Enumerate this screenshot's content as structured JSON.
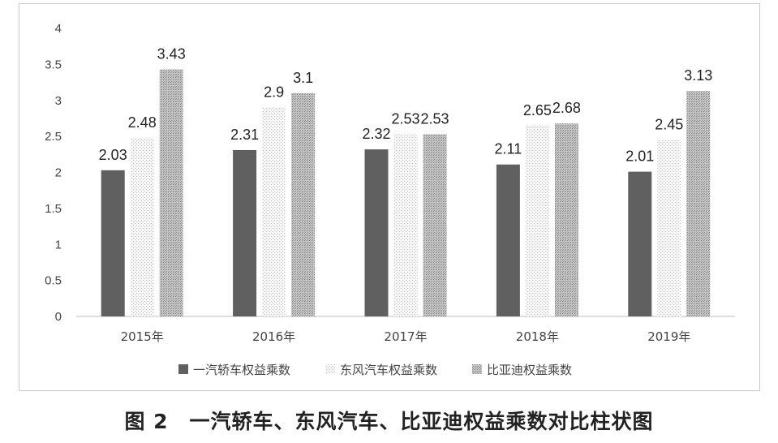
{
  "caption": "图 2　一汽轿车、东风汽车、比亚迪权益乘数对比柱状图",
  "chart_data": {
    "type": "bar",
    "categories": [
      "2015年",
      "2016年",
      "2017年",
      "2018年",
      "2019年"
    ],
    "series": [
      {
        "name": "一汽轿车权益乘数",
        "values": [
          2.03,
          2.31,
          2.32,
          2.11,
          2.01
        ],
        "labels": [
          "2.03",
          "2.31",
          "2.32",
          "2.11",
          "2.01"
        ],
        "color": "#606060",
        "pattern": "solid"
      },
      {
        "name": "东风汽车权益乘数",
        "values": [
          2.48,
          2.9,
          2.53,
          2.65,
          2.45
        ],
        "labels": [
          "2.48",
          "2.9",
          "2.53",
          "2.65",
          "2.45"
        ],
        "color": "#d8d8d8",
        "pattern": "light-dots"
      },
      {
        "name": "比亚迪权益乘数",
        "values": [
          3.43,
          3.1,
          2.53,
          2.68,
          3.13
        ],
        "labels": [
          "3.43",
          "3.1",
          "2.53",
          "2.68",
          "3.13"
        ],
        "color": "#9a9a9a",
        "pattern": "dense-dots"
      }
    ],
    "yticks": [
      "0",
      "0.5",
      "1",
      "1.5",
      "2",
      "2.5",
      "3",
      "3.5",
      "4"
    ],
    "ylim": [
      0,
      4
    ],
    "grid": false,
    "legend_position": "bottom"
  }
}
